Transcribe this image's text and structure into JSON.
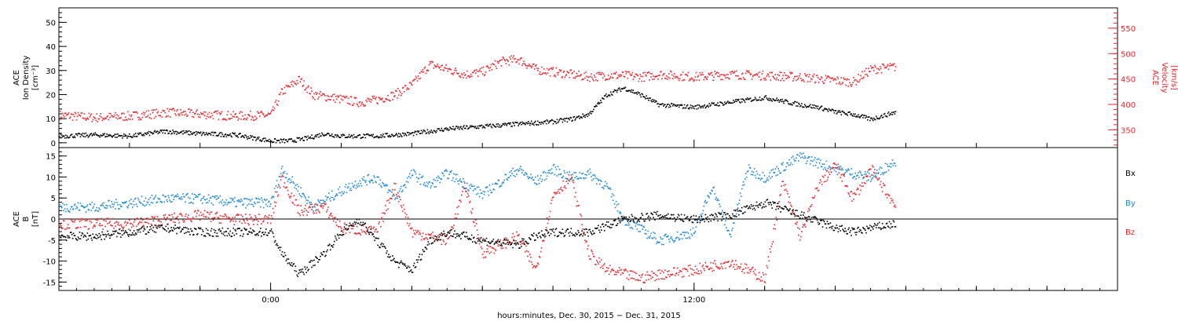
{
  "chart_data": [
    {
      "type": "scatter",
      "panel": "ion-density-velocity",
      "ylabel_left": [
        "ACE",
        "Ion Density",
        "[cm⁻³]"
      ],
      "ylabel_right": [
        "ACE",
        "Velocity",
        "[km/s]"
      ],
      "ylim_left": [
        -2,
        56
      ],
      "yticks_left": [
        "0",
        "10",
        "20",
        "30",
        "40",
        "50"
      ],
      "ylim_right": [
        315,
        590
      ],
      "yticks_right": [
        "350",
        "400",
        "450",
        "500",
        "550"
      ],
      "color_left": "#000000",
      "color_right": "#e8262b",
      "xlim_hours": [
        -6,
        24
      ],
      "series": [
        {
          "axis": "left",
          "color": "#000000",
          "x": [
            -6,
            -5,
            -4,
            -3,
            -2,
            -1,
            0,
            0.5,
            1,
            1.5,
            2,
            3,
            4,
            5,
            6,
            7,
            8,
            8.5,
            9,
            9.5,
            10,
            10.5,
            11,
            12,
            13,
            14,
            15,
            15.5,
            16,
            16.5,
            17,
            17.7
          ],
          "y": [
            3,
            3.5,
            3,
            5,
            4,
            3.5,
            1,
            1,
            2,
            4,
            3,
            3,
            4,
            6,
            7,
            8,
            9,
            10,
            12,
            20,
            23,
            20,
            16,
            15,
            17,
            19,
            16,
            15,
            13,
            12,
            10,
            13
          ]
        },
        {
          "axis": "right",
          "color": "#e8262b",
          "x": [
            -6,
            -5,
            -4,
            -3,
            -2,
            -1,
            0,
            0.3,
            0.8,
            1.2,
            1.7,
            2.5,
            3,
            3.5,
            4,
            4.5,
            5,
            5.5,
            6,
            6.5,
            7,
            7.5,
            8,
            8.5,
            9,
            9.5,
            10,
            10.5,
            11,
            12,
            13,
            14,
            15,
            16,
            16.5,
            17,
            17.7
          ],
          "y": [
            380,
            375,
            378,
            385,
            382,
            378,
            380,
            425,
            450,
            420,
            415,
            405,
            410,
            420,
            440,
            480,
            470,
            460,
            465,
            485,
            490,
            470,
            465,
            460,
            455,
            458,
            458,
            455,
            460,
            455,
            460,
            458,
            455,
            448,
            445,
            470,
            475
          ]
        }
      ]
    },
    {
      "type": "scatter",
      "panel": "magnetic-field",
      "ylabel": [
        "ACE",
        "B",
        "[nT]"
      ],
      "ylim": [
        -17,
        17
      ],
      "yticks": [
        "15",
        "10",
        "5",
        "0",
        "-5",
        "-10",
        "-15"
      ],
      "xlim_hours": [
        -6,
        24
      ],
      "legend": [
        "Bx",
        "By",
        "Bz"
      ],
      "series": [
        {
          "name": "Bx",
          "color": "#000000",
          "x": [
            -6,
            -5,
            -4,
            -3,
            -2,
            -1,
            0,
            0.3,
            0.8,
            1.5,
            2,
            2.5,
            3,
            3.5,
            4,
            4.5,
            5,
            6,
            7,
            7.5,
            8,
            9,
            10,
            11,
            12,
            13,
            14,
            15,
            16,
            16.5,
            17,
            17.7
          ],
          "y": [
            -4,
            -4,
            -3,
            -2,
            -3,
            -3,
            -3,
            -8,
            -13,
            -8,
            -3,
            0,
            -5,
            -10,
            -12,
            -5,
            -3,
            -5,
            -6,
            -4,
            -3,
            -3,
            0,
            1,
            0,
            1,
            4,
            1,
            -2,
            -3,
            -2,
            -1
          ]
        },
        {
          "name": "By",
          "color": "#1c86d8",
          "x": [
            -6,
            -5,
            -4,
            -3,
            -2,
            -1,
            0,
            0.3,
            0.7,
            1.2,
            1.8,
            2.5,
            3,
            3.5,
            4,
            4.5,
            5,
            6,
            7,
            7.5,
            8,
            8.5,
            9,
            9.5,
            10,
            11,
            12,
            12.5,
            13,
            13.5,
            14,
            15,
            16,
            16.5,
            17,
            17.7
          ],
          "y": [
            3,
            3,
            4,
            5,
            5,
            4,
            4,
            12,
            8,
            3,
            6,
            9,
            10,
            5,
            11,
            8,
            11,
            6,
            12,
            9,
            12,
            10,
            11,
            8,
            0,
            -5,
            -3,
            8,
            -4,
            12,
            10,
            15,
            12,
            11,
            10,
            14
          ]
        },
        {
          "name": "Bz",
          "color": "#e8262b",
          "x": [
            -6,
            -5,
            -4,
            -3,
            -2,
            -1,
            0,
            0.3,
            0.8,
            1.5,
            2,
            3,
            3.5,
            4,
            5,
            5.5,
            6,
            7,
            7.5,
            8,
            8.5,
            9,
            9.5,
            10,
            10.5,
            11,
            12,
            13,
            14,
            14.5,
            15,
            15.5,
            16,
            16.5,
            17,
            17.7
          ],
          "y": [
            -1,
            -1,
            -1,
            0,
            1,
            0,
            0,
            10,
            2,
            3,
            -2,
            -3,
            8,
            -3,
            -5,
            8,
            -8,
            -4,
            -12,
            6,
            10,
            -8,
            -12,
            -13,
            -14,
            -13,
            -12,
            -10,
            -14,
            9,
            -4,
            8,
            13,
            5,
            12,
            3
          ]
        }
      ]
    }
  ],
  "xaxis": {
    "xlabel": "hours:minutes, Dec. 30, 2015 − Dec. 31, 2015",
    "ticks": [
      {
        "hour": 0,
        "label": "0:00"
      },
      {
        "hour": 12,
        "label": "12:00"
      }
    ]
  },
  "legend_labels": {
    "bx": "Bx",
    "by": "By",
    "bz": "Bz"
  }
}
